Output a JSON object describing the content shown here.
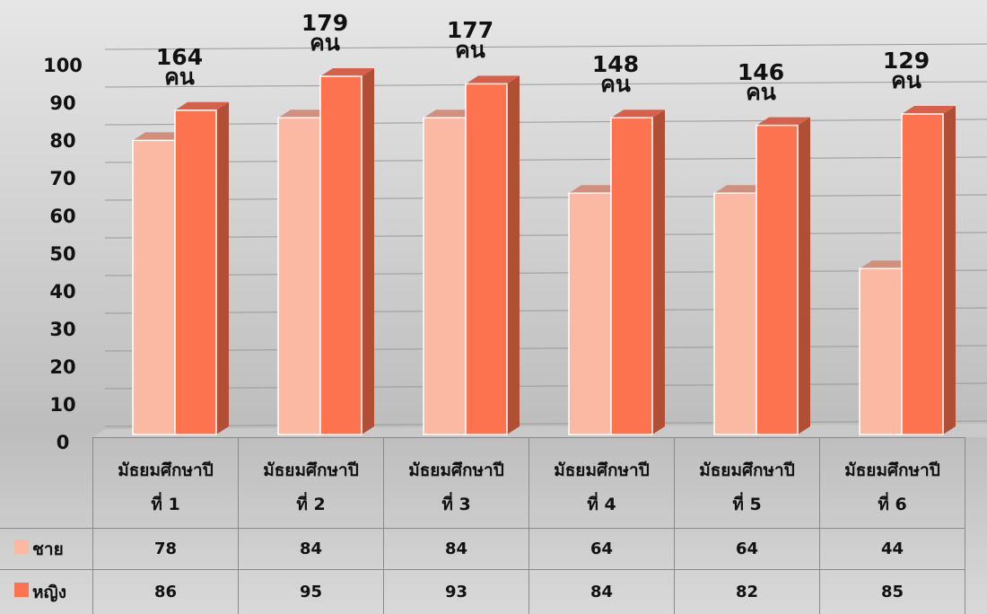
{
  "chart_data": {
    "type": "bar3d",
    "categories": [
      "มัธยมศึกษาปี\nที่ 1",
      "มัธยมศึกษาปี\nที่ 2",
      "มัธยมศึกษาปี\nที่ 3",
      "มัธยมศึกษาปี\nที่ 4",
      "มัธยมศึกษาปี\nที่ 5",
      "มัธยมศึกษาปี\nที่ 6"
    ],
    "series": [
      {
        "name": "ชาย",
        "color": "#fbb8a2",
        "values": [
          78,
          84,
          84,
          64,
          64,
          44
        ]
      },
      {
        "name": "หญิง",
        "color": "#fd7350",
        "values": [
          86,
          95,
          93,
          84,
          82,
          85
        ]
      }
    ],
    "totals": {
      "values": [
        164,
        179,
        177,
        148,
        146,
        129
      ],
      "value_labels": [
        "164\nคน",
        "179\nคน",
        "177\nคน",
        "148\nคน",
        "146\nคน",
        "129\nคน"
      ]
    },
    "ylim": [
      0,
      100
    ],
    "yticks": [
      0,
      10,
      20,
      30,
      40,
      50,
      60,
      70,
      80,
      90,
      100
    ],
    "grid": true
  }
}
